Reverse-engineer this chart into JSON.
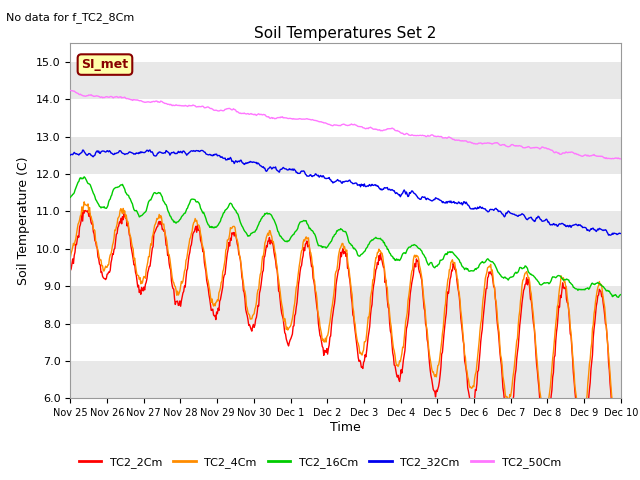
{
  "title": "Soil Temperatures Set 2",
  "subtitle": "No data for f_TC2_8Cm",
  "ylabel": "Soil Temperature (C)",
  "xlabel": "Time",
  "ylim": [
    6.0,
    15.5
  ],
  "yticks": [
    6.0,
    7.0,
    8.0,
    9.0,
    10.0,
    11.0,
    12.0,
    13.0,
    14.0,
    15.0
  ],
  "xtick_labels": [
    "Nov 25",
    "Nov 26",
    "Nov 27",
    "Nov 28",
    "Nov 29",
    "Nov 30",
    "Dec 1",
    "Dec 2",
    "Dec 3",
    "Dec 4",
    "Dec 5",
    "Dec 6",
    "Dec 7",
    "Dec 8",
    "Dec 9",
    "Dec 10"
  ],
  "series_colors": {
    "TC2_2Cm": "#FF0000",
    "TC2_4Cm": "#FF8C00",
    "TC2_16Cm": "#00CC00",
    "TC2_32Cm": "#0000EE",
    "TC2_50Cm": "#FF77FF"
  },
  "bg_color": "#FFFFFF",
  "band_color": "#E8E8E8",
  "grid_color": "#FFFFFF",
  "annotation_text": "SI_met",
  "annotation_bg": "#FFFFAA",
  "annotation_border": "#880000",
  "linewidth": 1.0
}
